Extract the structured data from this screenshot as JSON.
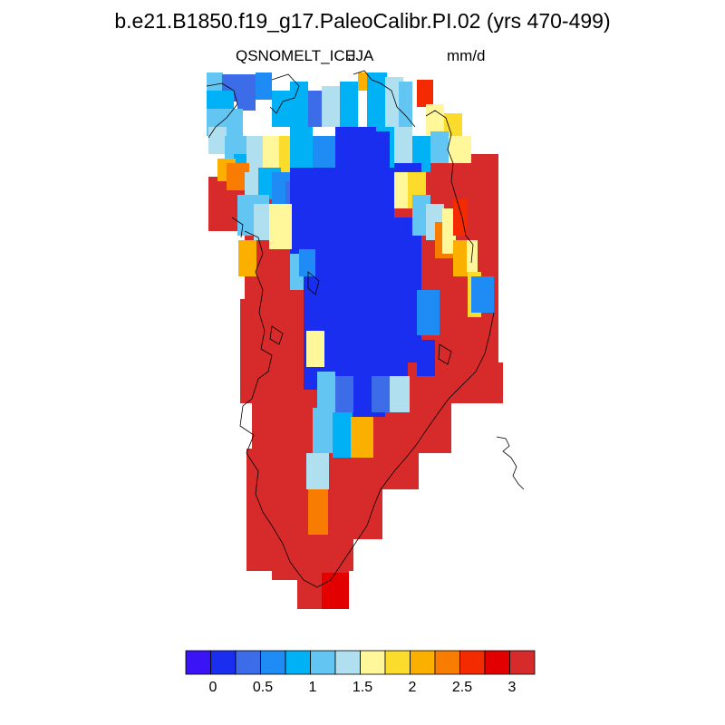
{
  "title": "b.e21.B1850.f19_g17.PaleoCalibr.PI.02 (yrs 470-499)",
  "variable": "QSNOMELT_ICE",
  "season": "JJA",
  "units": "mm/d",
  "colorbar": {
    "colors": [
      "#3a14f5",
      "#1a2ef0",
      "#3d6ce8",
      "#1e8cf4",
      "#00b2f5",
      "#63c6f2",
      "#b0dff0",
      "#fff79a",
      "#fbdc2c",
      "#fbb000",
      "#f77c00",
      "#f42a00",
      "#e30000",
      "#d72b2b"
    ],
    "tick_labels": [
      "0",
      "0.5",
      "1",
      "1.5",
      "2",
      "2.5",
      "3"
    ]
  }
}
